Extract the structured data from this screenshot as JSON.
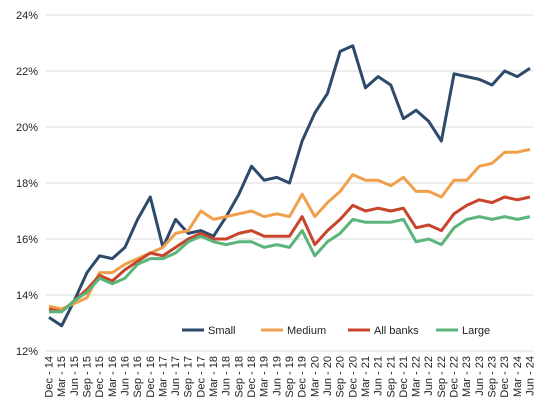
{
  "chart_data": {
    "type": "line",
    "categories": [
      "Dec - 14",
      "Mar - 15",
      "Jun - 15",
      "Sep - 15",
      "Dec - 15",
      "Mar - 16",
      "Jun - 16",
      "Sep - 16",
      "Dec - 16",
      "Mar - 17",
      "Jun - 17",
      "Sep - 17",
      "Dec - 17",
      "Mar - 18",
      "Jun - 18",
      "Sep - 18",
      "Dec - 18",
      "Mar - 19",
      "Jun - 19",
      "Sep - 19",
      "Dec - 19",
      "Mar - 20",
      "Jun - 20",
      "Sep - 20",
      "Dec - 20",
      "Mar - 21",
      "Jun - 21",
      "Sep - 21",
      "Dec - 21",
      "Mar - 22",
      "Jun - 22",
      "Sep - 22",
      "Dec - 22",
      "Mar - 23",
      "Jun - 23",
      "Sep - 23",
      "Dec - 23",
      "Mar - 24",
      "Jun - 24"
    ],
    "series": [
      {
        "name": "Small",
        "color": "#2e4a6b",
        "values": [
          13.2,
          12.9,
          13.8,
          14.8,
          15.4,
          15.3,
          15.7,
          16.7,
          17.5,
          15.7,
          16.7,
          16.2,
          16.3,
          16.1,
          16.8,
          17.6,
          18.6,
          18.1,
          18.2,
          18.0,
          19.5,
          20.5,
          21.2,
          22.7,
          22.9,
          21.4,
          21.8,
          21.5,
          20.3,
          20.6,
          20.2,
          19.5,
          21.9,
          21.8,
          21.7,
          21.5,
          22.0,
          21.8,
          22.1
        ]
      },
      {
        "name": "Medium",
        "color": "#f0a04b",
        "values": [
          13.6,
          13.5,
          13.7,
          13.9,
          14.8,
          14.8,
          15.1,
          15.3,
          15.5,
          15.7,
          16.2,
          16.3,
          17.0,
          16.7,
          16.8,
          16.9,
          17.0,
          16.8,
          16.9,
          16.8,
          17.6,
          16.8,
          17.3,
          17.7,
          18.3,
          18.1,
          18.1,
          17.9,
          18.2,
          17.7,
          17.7,
          17.5,
          18.1,
          18.1,
          18.6,
          18.7,
          19.1,
          19.1,
          19.2
        ]
      },
      {
        "name": "All banks",
        "color": "#c8442c",
        "values": [
          13.5,
          13.4,
          13.8,
          14.2,
          14.7,
          14.5,
          14.9,
          15.2,
          15.5,
          15.4,
          15.7,
          16.0,
          16.2,
          16.0,
          16.0,
          16.2,
          16.3,
          16.1,
          16.1,
          16.1,
          16.8,
          15.8,
          16.3,
          16.7,
          17.2,
          17.0,
          17.1,
          17.0,
          17.1,
          16.4,
          16.5,
          16.3,
          16.9,
          17.2,
          17.4,
          17.3,
          17.5,
          17.4,
          17.5
        ]
      },
      {
        "name": "Large",
        "color": "#5bb57a",
        "values": [
          13.4,
          13.4,
          13.8,
          14.1,
          14.6,
          14.4,
          14.6,
          15.1,
          15.3,
          15.3,
          15.5,
          15.9,
          16.1,
          15.9,
          15.8,
          15.9,
          15.9,
          15.7,
          15.8,
          15.7,
          16.3,
          15.4,
          15.9,
          16.2,
          16.7,
          16.6,
          16.6,
          16.6,
          16.7,
          15.9,
          16.0,
          15.8,
          16.4,
          16.7,
          16.8,
          16.7,
          16.8,
          16.7,
          16.8
        ]
      }
    ],
    "ylim": [
      12,
      24
    ],
    "yticks": [
      {
        "value": 12,
        "label": "12%"
      },
      {
        "value": 14,
        "label": "14%"
      },
      {
        "value": 16,
        "label": "16%"
      },
      {
        "value": 18,
        "label": "18%"
      },
      {
        "value": 20,
        "label": "20%"
      },
      {
        "value": 22,
        "label": "22%"
      },
      {
        "value": 24,
        "label": "24%"
      }
    ],
    "grid": true
  }
}
